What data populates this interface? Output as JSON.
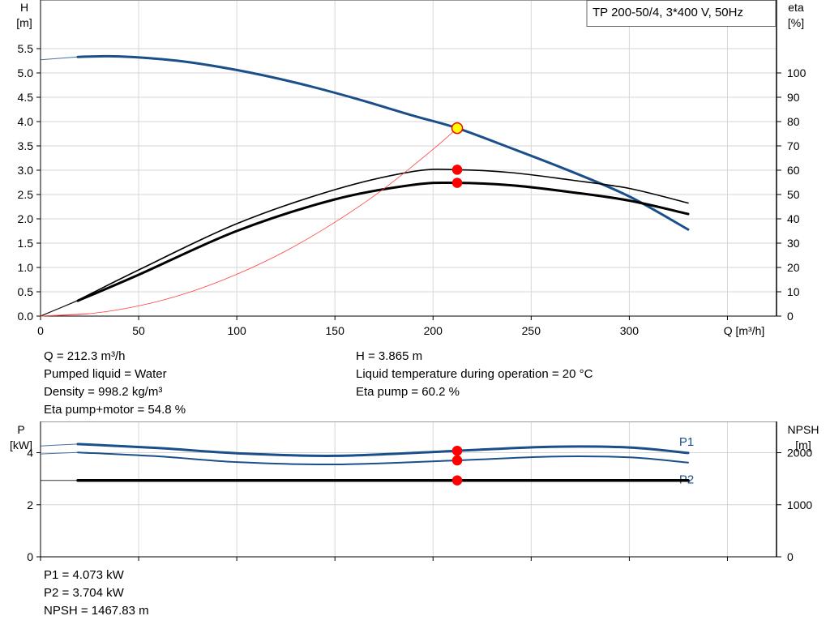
{
  "chart_data": [
    {
      "type": "line",
      "title": "TP 200-50/4, 3*400 V, 50Hz",
      "xlabel": "Q [m³/h]",
      "ylabel_left": [
        "H",
        "[m]"
      ],
      "ylabel_right": [
        "eta",
        "[%]"
      ],
      "xlim": [
        0,
        375
      ],
      "xticks": [
        0,
        50,
        100,
        150,
        200,
        250,
        300
      ],
      "ylim": [
        0,
        6.5
      ],
      "yticks": [
        0.0,
        0.5,
        1.0,
        1.5,
        2.0,
        2.5,
        3.0,
        3.5,
        4.0,
        4.5,
        5.0,
        5.5
      ],
      "y2lim": [
        0,
        130
      ],
      "y2ticks": [
        0,
        10,
        20,
        30,
        40,
        50,
        60,
        70,
        80,
        90,
        100
      ],
      "grid": true,
      "series": [
        {
          "axis": "left",
          "color": "#1a4f8a",
          "width": 3,
          "x": [
            0,
            19,
            40,
            70,
            100,
            130,
            160,
            190,
            212.3,
            240,
            270,
            300,
            330
          ],
          "y": [
            5.27,
            5.33,
            5.34,
            5.25,
            5.06,
            4.8,
            4.48,
            4.12,
            3.865,
            3.45,
            2.98,
            2.46,
            1.78
          ]
        },
        {
          "axis": "right",
          "color": "#000000",
          "width": 1.6,
          "x": [
            0,
            19,
            50,
            100,
            150,
            190,
            212.3,
            240,
            270,
            300,
            330
          ],
          "y": [
            0,
            6.5,
            19,
            38,
            52,
            59.5,
            60.2,
            59,
            56,
            52.5,
            46.5
          ]
        },
        {
          "axis": "right",
          "color": "#000000",
          "width": 3,
          "x": [
            0,
            19,
            50,
            100,
            150,
            190,
            212.3,
            240,
            270,
            300,
            330
          ],
          "y": [
            0,
            6.3,
            17,
            35,
            48,
            54,
            54.8,
            53.8,
            51,
            47.5,
            42
          ]
        },
        {
          "axis": "left",
          "color": "#ff4040",
          "width": 0.8,
          "x": [
            0,
            25,
            50,
            75,
            100,
            125,
            150,
            175,
            200,
            212.3
          ],
          "y": [
            0,
            0.05,
            0.21,
            0.48,
            0.86,
            1.34,
            1.93,
            2.62,
            3.43,
            3.865
          ]
        }
      ],
      "markers": [
        {
          "axis": "left",
          "x": 212.3,
          "y": 3.865,
          "fill": "#ffff00",
          "stroke": "#ff0000"
        },
        {
          "axis": "right",
          "x": 212.3,
          "y": 60.2,
          "fill": "#ff0000",
          "stroke": "#ff0000"
        },
        {
          "axis": "right",
          "x": 212.3,
          "y": 54.8,
          "fill": "#ff0000",
          "stroke": "#ff0000"
        }
      ]
    },
    {
      "type": "line",
      "xlim": [
        0,
        375
      ],
      "ylabel_left": [
        "P",
        "[kW]"
      ],
      "ylabel_right": [
        "NPSH",
        "[m]"
      ],
      "ylim": [
        0,
        5.2
      ],
      "yticks": [
        0,
        2,
        4
      ],
      "y2lim": [
        0,
        2600
      ],
      "y2ticks": [
        0,
        1000,
        2000
      ],
      "grid": true,
      "series": [
        {
          "name": "P1",
          "axis": "left",
          "color": "#1a4f8a",
          "width": 3,
          "x": [
            0,
            19,
            60,
            100,
            150,
            212.3,
            260,
            300,
            330
          ],
          "y": [
            4.26,
            4.33,
            4.18,
            3.98,
            3.88,
            4.073,
            4.23,
            4.2,
            3.99
          ]
        },
        {
          "name": "P2",
          "axis": "left",
          "color": "#1a4f8a",
          "width": 2,
          "x": [
            0,
            19,
            60,
            100,
            150,
            212.3,
            260,
            300,
            330
          ],
          "y": [
            3.95,
            4.01,
            3.86,
            3.64,
            3.55,
            3.704,
            3.85,
            3.82,
            3.62
          ]
        },
        {
          "axis": "right",
          "color": "#000000",
          "width": 3.5,
          "x": [
            0,
            19,
            212.3,
            330
          ],
          "y": [
            1467.83,
            1467.83,
            1467.83,
            1467.83
          ]
        }
      ],
      "markers": [
        {
          "axis": "left",
          "x": 212.3,
          "y": 4.073,
          "fill": "#ff0000",
          "stroke": "#ff0000"
        },
        {
          "axis": "left",
          "x": 212.3,
          "y": 3.704,
          "fill": "#ff0000",
          "stroke": "#ff0000"
        },
        {
          "axis": "right",
          "x": 212.3,
          "y": 1467.83,
          "fill": "#ff0000",
          "stroke": "#ff0000"
        }
      ]
    }
  ],
  "info_top_left": [
    "Q = 212.3 m³/h",
    "Pumped liquid = Water",
    "Density = 998.2 kg/m³",
    "Eta pump+motor = 54.8 %"
  ],
  "info_top_right": [
    "H = 3.865 m",
    "Liquid temperature during operation = 20 °C",
    "Eta pump = 60.2 %"
  ],
  "info_bottom": [
    "P1 = 4.073 kW",
    "P2 = 3.704 kW",
    "NPSH = 1467.83 m"
  ]
}
